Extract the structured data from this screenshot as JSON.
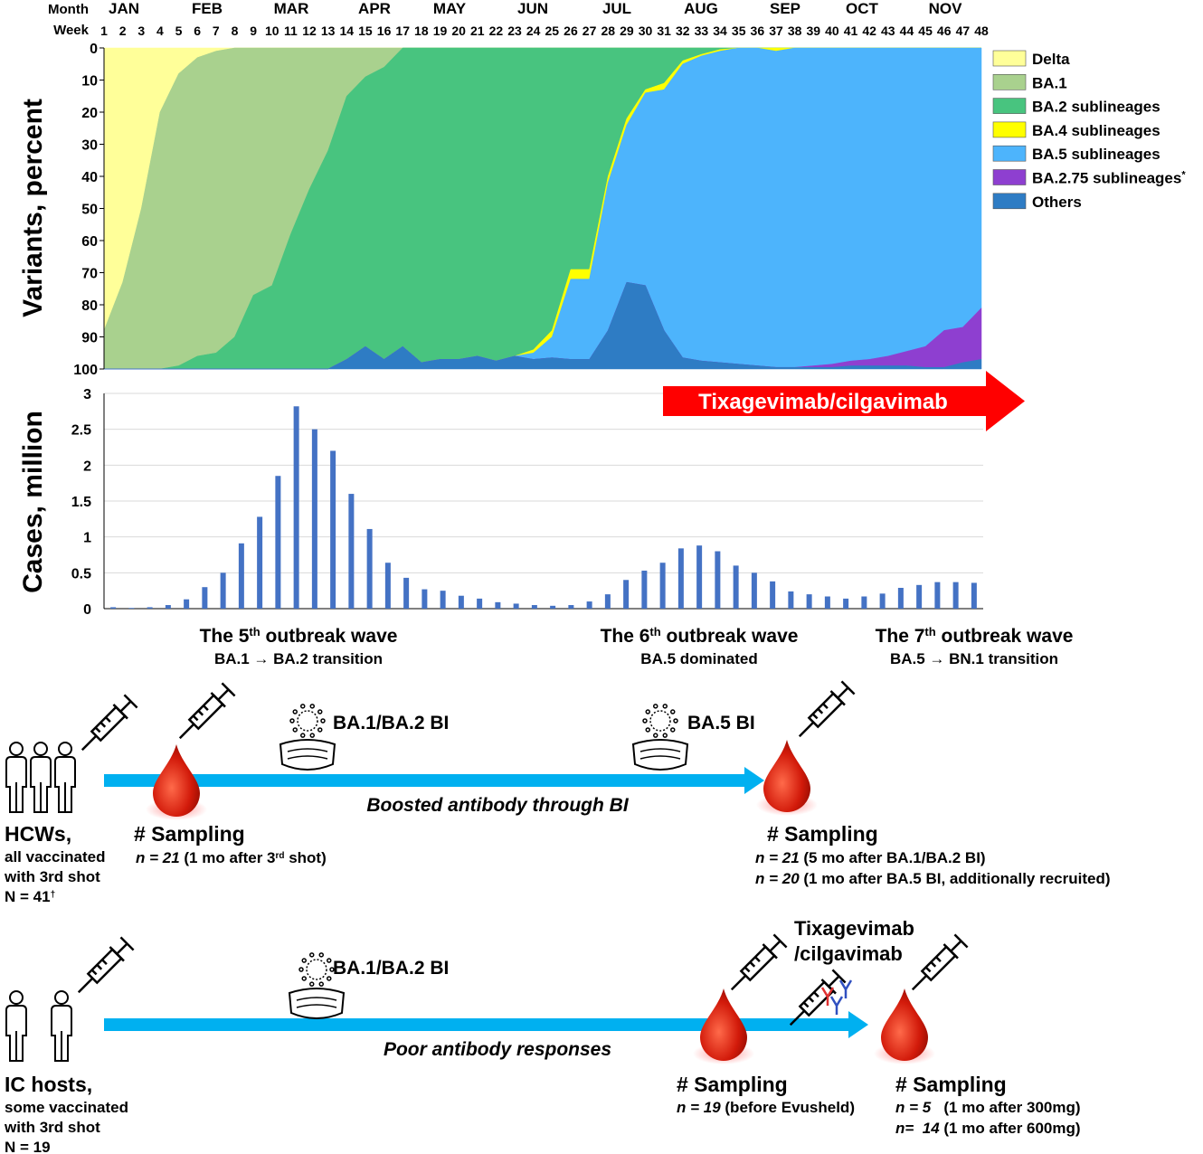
{
  "chart_data": [
    {
      "type": "stacked_area",
      "y_label": "Variants, percent",
      "x_label_month": "Month",
      "x_label": "Week",
      "months": [
        "JAN",
        "FEB",
        "MAR",
        "APR",
        "MAY",
        "JUN",
        "JUL",
        "AUG",
        "SEP",
        "OCT",
        "NOV"
      ],
      "categories": [
        "1",
        "2",
        "3",
        "4",
        "5",
        "6",
        "7",
        "8",
        "9",
        "10",
        "11",
        "12",
        "13",
        "14",
        "15",
        "16",
        "17",
        "18",
        "19",
        "20",
        "21",
        "22",
        "23",
        "24",
        "25",
        "26",
        "27",
        "28",
        "29",
        "30",
        "31",
        "32",
        "33",
        "34",
        "35",
        "36",
        "37",
        "38",
        "39",
        "40",
        "41",
        "42",
        "43",
        "44",
        "45",
        "46",
        "47",
        "48"
      ],
      "ylim": [
        0,
        100
      ],
      "yticks": [
        0,
        10,
        20,
        30,
        40,
        50,
        60,
        70,
        80,
        90,
        100
      ],
      "y_inverted": true,
      "legend": "right",
      "series": [
        {
          "name": "Delta",
          "color": "#ffff99",
          "values": [
            88,
            73,
            50,
            20,
            8,
            3,
            1,
            0,
            0,
            0,
            0,
            0,
            0,
            0,
            0,
            0,
            0,
            0,
            0,
            0,
            0,
            0,
            0,
            0,
            0,
            0,
            0,
            0,
            0,
            0,
            0,
            0,
            0,
            0,
            0,
            0,
            0,
            0,
            0,
            0,
            0,
            0,
            0,
            0,
            0,
            0,
            0,
            0
          ]
        },
        {
          "name": "BA.1",
          "color": "#a9d18e",
          "values": [
            12,
            27,
            50,
            80,
            91,
            93,
            94,
            90,
            77,
            74,
            58,
            44,
            32,
            15,
            9,
            6,
            0,
            0,
            0,
            0,
            0,
            0,
            0,
            0,
            0,
            0,
            0,
            0,
            0,
            0,
            0,
            0,
            0,
            0,
            0,
            0,
            0,
            0,
            0,
            0,
            0,
            0,
            0,
            0,
            0,
            0,
            0,
            0
          ]
        },
        {
          "name": "BA.2 sublineages",
          "color": "#48c47f",
          "values": [
            0,
            0,
            0,
            0,
            1,
            4,
            5,
            10,
            23,
            26,
            42,
            56,
            68,
            82,
            84,
            91,
            93,
            98,
            97,
            97,
            96,
            97.5,
            96,
            94,
            88,
            69,
            69,
            40,
            22,
            13,
            11,
            4,
            2,
            0.5,
            0,
            0,
            0,
            0,
            0,
            0,
            0,
            0,
            0,
            0,
            0,
            0,
            0,
            0
          ]
        },
        {
          "name": "BA.4 sublineages",
          "color": "#ffff00",
          "values": [
            0,
            0,
            0,
            0,
            0,
            0,
            0,
            0,
            0,
            0,
            0,
            0,
            0,
            0,
            0,
            0,
            0,
            0,
            0,
            0,
            0,
            0,
            0,
            1,
            2,
            3,
            3,
            2,
            2,
            1,
            2,
            1,
            0.5,
            0.5,
            0,
            0,
            1,
            0,
            0,
            0,
            0,
            0,
            0,
            0,
            0,
            0,
            0,
            0
          ]
        },
        {
          "name": "BA.5 sublineages",
          "color": "#4db4fc",
          "values": [
            0,
            0,
            0,
            0,
            0,
            0,
            0,
            0,
            0,
            0,
            0,
            0,
            0,
            0,
            0,
            0,
            0,
            0,
            0,
            0,
            0,
            0,
            0,
            2,
            6.5,
            25,
            25,
            46,
            49,
            60,
            75,
            91.5,
            95,
            97,
            98.5,
            99,
            98.5,
            99.5,
            99,
            98.5,
            97.5,
            97,
            96,
            94.5,
            93,
            88,
            87,
            81
          ]
        },
        {
          "name": "BA.2.75 sublineages",
          "name_note": "*",
          "color": "#8e3fd0",
          "values": [
            0,
            0,
            0,
            0,
            0,
            0,
            0,
            0,
            0,
            0,
            0,
            0,
            0,
            0,
            0,
            0,
            0,
            0,
            0,
            0,
            0,
            0,
            0,
            0,
            0,
            0,
            0,
            0,
            0,
            0,
            0,
            0,
            0,
            0,
            0,
            0,
            0,
            0,
            0.5,
            1,
            1.5,
            2,
            3,
            4.5,
            6.5,
            11.5,
            11,
            16
          ]
        },
        {
          "name": "Others",
          "color": "#2e7cc4",
          "values": [
            0,
            0,
            0,
            0,
            0,
            0,
            0,
            0,
            0,
            0,
            0,
            0,
            0,
            3,
            7,
            3,
            7,
            2,
            3,
            3,
            4,
            2.5,
            4,
            3,
            3.5,
            3,
            3,
            12,
            27,
            26,
            12,
            3.5,
            2.5,
            2,
            1.5,
            1,
            0.5,
            0.5,
            0.5,
            0.5,
            1,
            1,
            1,
            1,
            0.5,
            0.5,
            2,
            3
          ]
        }
      ]
    },
    {
      "type": "bar",
      "y_label": "Cases, million",
      "color": "#4472c4",
      "values": [
        0.02,
        0.01,
        0.02,
        0.05,
        0.13,
        0.3,
        0.5,
        0.91,
        1.28,
        1.85,
        2.82,
        2.5,
        2.2,
        1.6,
        1.11,
        0.64,
        0.43,
        0.27,
        0.25,
        0.18,
        0.14,
        0.09,
        0.07,
        0.05,
        0.04,
        0.05,
        0.1,
        0.2,
        0.4,
        0.53,
        0.64,
        0.84,
        0.88,
        0.8,
        0.6,
        0.5,
        0.38,
        0.24,
        0.2,
        0.17,
        0.14,
        0.17,
        0.21,
        0.29,
        0.33,
        0.37,
        0.37,
        0.36
      ],
      "ylim": [
        0,
        3
      ],
      "yticks": [
        0,
        0.5,
        1,
        1.5,
        2,
        2.5,
        3
      ],
      "grid": true,
      "annotation": "Tixagevimab/cilgavimab",
      "annotation_color": "#ff0000",
      "waves": [
        {
          "title": [
            {
              "text": "The 5"
            },
            {
              "sup": "th"
            },
            {
              "text": " outbreak wave"
            }
          ],
          "subtitle": "BA.1 → BA.2 transition"
        },
        {
          "title": [
            {
              "text": "The 6"
            },
            {
              "sup": "th"
            },
            {
              "text": " outbreak wave"
            }
          ],
          "subtitle": "BA.5 dominated"
        },
        {
          "title": [
            {
              "text": "The 7"
            },
            {
              "sup": "th"
            },
            {
              "text": " outbreak wave"
            }
          ],
          "subtitle": "BA.5 → BN.1 transition"
        }
      ]
    }
  ],
  "cohorts": [
    {
      "label": "HCWs,",
      "details": [
        [
          {
            "text": "all vaccinated"
          }
        ],
        [
          {
            "text": "with 3rd shot"
          }
        ],
        [
          {
            "text": "N = 41"
          },
          {
            "sup": "†"
          }
        ]
      ],
      "infections": [
        "BA.1/BA.2 BI",
        "BA.5 BI"
      ],
      "arrow_label": "Boosted antibody through BI",
      "samplings": [
        {
          "title": "# Sampling",
          "lines": [
            [
              {
                "italic": "n = 21"
              },
              {
                "text": " (1 mo after 3"
              },
              {
                "sup": "rd"
              },
              {
                "text": " shot)"
              }
            ]
          ]
        },
        {
          "title": "# Sampling",
          "lines": [
            [
              {
                "italic": "n = 21"
              },
              {
                "text": " (5 mo after BA.1/BA.2 BI)"
              }
            ],
            [
              {
                "italic": "n = 20"
              },
              {
                "text": " (1 mo after BA.5 BI, additionally recruited)"
              }
            ]
          ]
        }
      ]
    },
    {
      "label": "IC hosts,",
      "details": [
        [
          {
            "text": "some vaccinated"
          }
        ],
        [
          {
            "text": "with 3rd shot"
          }
        ],
        [
          {
            "text": "N = 19"
          }
        ]
      ],
      "infections": [
        "BA.1/BA.2 BI"
      ],
      "arrow_label": "Poor antibody responses",
      "treatment": [
        "Tixagevimab",
        "/cilgavimab"
      ],
      "samplings": [
        {
          "title": "# Sampling",
          "lines": [
            [
              {
                "italic": "n = 19"
              },
              {
                "text": " (before Evusheld)"
              }
            ]
          ]
        },
        {
          "title": "# Sampling",
          "lines": [
            [
              {
                "italic": "n = 5"
              },
              {
                "text": "   (1 mo after 300mg)"
              }
            ],
            [
              {
                "italic": "n=  14"
              },
              {
                "text": " (1 mo after 600mg)"
              }
            ]
          ]
        }
      ]
    }
  ]
}
